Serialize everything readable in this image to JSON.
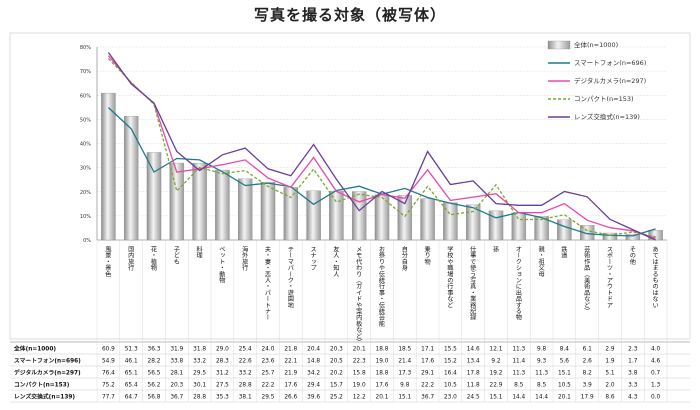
{
  "chart_data": {
    "type": "bar",
    "title": "写真を撮る対象（被写体）",
    "xlabel": "",
    "ylabel": "",
    "ylim": [
      0,
      80
    ],
    "y_ticks": [
      "0%",
      "10%",
      "20%",
      "30%",
      "40%",
      "50%",
      "60%",
      "70%",
      "80%"
    ],
    "grid": true,
    "legend_position": "top-right",
    "categories": [
      "風景・景色",
      "国内旅行",
      "花・植物",
      "子ども",
      "料理",
      "ペット・動物",
      "海外旅行",
      "夫・妻・恋人・パートナー",
      "テーマパーク・遊園地",
      "スナップ",
      "友人・知人",
      "メモ代わり（ガイドや案内板など）",
      "お祭りや伝統行事・伝統芸能",
      "自分自身",
      "乗り物",
      "学校や職場の行事など",
      "仕事で使う写真・業務記録",
      "孫",
      "オークションに出品する物",
      "親・祖父母",
      "鉄道",
      "芸術作品（美術品など）",
      "スポーツ・アウトドア",
      "その他",
      "あてはまるものはない"
    ],
    "series": [
      {
        "name": "全体(n=1000)",
        "type": "bar",
        "color": "#b8b8b8",
        "values": [
          60.9,
          51.3,
          36.3,
          31.9,
          31.8,
          29.0,
          25.4,
          24.0,
          21.8,
          20.4,
          20.3,
          20.1,
          18.8,
          18.5,
          17.1,
          15.5,
          14.6,
          12.1,
          11.3,
          9.8,
          8.4,
          6.1,
          2.9,
          2.3,
          4.0
        ]
      },
      {
        "name": "スマートフォン(n=696)",
        "type": "line",
        "color": "#1f7a8c",
        "values": [
          54.9,
          46.1,
          28.2,
          33.8,
          33.2,
          28.3,
          22.6,
          23.6,
          22.1,
          14.8,
          20.5,
          22.3,
          19.0,
          21.4,
          17.6,
          15.2,
          13.4,
          9.2,
          11.4,
          9.3,
          5.6,
          2.6,
          1.9,
          1.7,
          4.6
        ]
      },
      {
        "name": "デジタルカメラ(n=297)",
        "type": "line",
        "color": "#e84aa8",
        "values": [
          76.4,
          65.1,
          56.5,
          28.1,
          29.5,
          31.2,
          33.2,
          25.7,
          21.9,
          34.2,
          20.2,
          15.8,
          18.8,
          17.3,
          29.1,
          16.4,
          17.8,
          19.2,
          11.3,
          11.3,
          15.1,
          8.2,
          5.1,
          3.8,
          0.7
        ]
      },
      {
        "name": "コンパクト(n=153)",
        "type": "line",
        "color": "#7aa82a",
        "dashed": true,
        "values": [
          75.2,
          65.4,
          56.2,
          20.3,
          30.1,
          27.5,
          28.8,
          22.2,
          17.6,
          29.4,
          15.7,
          19.0,
          17.6,
          9.8,
          22.2,
          10.5,
          11.8,
          22.9,
          8.5,
          8.5,
          10.5,
          3.9,
          2.0,
          3.3,
          1.3
        ]
      },
      {
        "name": "レンズ交換式(n=139)",
        "type": "line",
        "color": "#6a3d9a",
        "values": [
          77.7,
          64.7,
          56.8,
          36.7,
          28.8,
          35.3,
          38.1,
          29.5,
          26.6,
          39.6,
          25.2,
          12.2,
          20.1,
          15.1,
          36.7,
          23.0,
          24.5,
          15.1,
          14.4,
          14.4,
          20.1,
          17.9,
          8.6,
          4.3,
          0.0
        ]
      }
    ]
  },
  "table": {
    "row_labels": [
      "全体(n=1000)",
      "スマートフォン(n=696)",
      "デジタルカメラ(n=297)",
      "コンパクト(n=153)",
      "レンズ交換式(n=139)"
    ]
  }
}
